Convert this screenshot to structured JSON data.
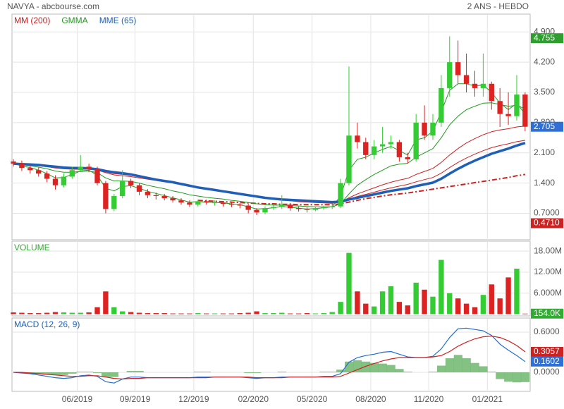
{
  "chart_data": [
    {
      "type": "candlestick",
      "title": "NAVYA - abcbourse.com",
      "subtitle": "2 ANS - HEBDO",
      "up_color": "#33cc33",
      "down_color": "#dd2222",
      "open": [
        1.9,
        1.85,
        1.75,
        1.7,
        1.62,
        1.5,
        1.35,
        1.55,
        1.7,
        1.78,
        1.72,
        1.4,
        0.8,
        1.1,
        1.45,
        1.35,
        1.2,
        1.12,
        1.1,
        1.05,
        1.0,
        0.95,
        0.9,
        0.98,
        0.95,
        0.95,
        0.92,
        0.9,
        0.88,
        0.78,
        0.72,
        0.82,
        0.85,
        0.9,
        0.82,
        0.8,
        0.78,
        0.82,
        0.84,
        0.86,
        1.4,
        2.5,
        2.35,
        2.05,
        2.25,
        2.3,
        2.35,
        2.0,
        1.95,
        2.8,
        2.5,
        2.8,
        3.6,
        4.2,
        3.9,
        3.7,
        3.6,
        3.7,
        3.3,
        3.0,
        2.95,
        3.45
      ],
      "high": [
        1.95,
        1.92,
        1.82,
        1.76,
        1.68,
        1.58,
        1.62,
        1.78,
        2.05,
        1.85,
        1.78,
        1.45,
        1.15,
        1.7,
        1.5,
        1.4,
        1.26,
        1.18,
        1.15,
        1.1,
        1.05,
        1.0,
        1.02,
        1.02,
        1.0,
        0.98,
        0.96,
        0.94,
        0.92,
        0.82,
        0.86,
        0.9,
        1.12,
        0.94,
        0.86,
        0.84,
        0.86,
        0.88,
        0.92,
        1.5,
        4.1,
        2.8,
        2.45,
        2.4,
        2.7,
        2.5,
        2.4,
        2.1,
        3.0,
        3.2,
        3.0,
        3.9,
        4.8,
        4.7,
        4.4,
        4.0,
        4.4,
        3.75,
        3.6,
        3.5,
        3.9,
        3.5
      ],
      "low": [
        1.78,
        1.68,
        1.62,
        1.55,
        1.42,
        1.25,
        1.3,
        1.5,
        1.65,
        1.65,
        1.35,
        0.7,
        0.75,
        1.05,
        1.28,
        1.12,
        1.05,
        1.02,
        1.0,
        0.95,
        0.9,
        0.85,
        0.86,
        0.9,
        0.88,
        0.86,
        0.84,
        0.82,
        0.7,
        0.66,
        0.68,
        0.78,
        0.8,
        0.76,
        0.74,
        0.72,
        0.75,
        0.78,
        0.8,
        0.82,
        1.35,
        2.2,
        1.95,
        1.95,
        2.1,
        2.2,
        1.9,
        1.85,
        1.9,
        2.4,
        2.4,
        2.7,
        3.4,
        3.7,
        3.5,
        3.4,
        3.4,
        3.1,
        2.7,
        2.75,
        2.85,
        2.6
      ],
      "close": [
        1.85,
        1.75,
        1.7,
        1.62,
        1.5,
        1.35,
        1.55,
        1.7,
        1.78,
        1.72,
        1.4,
        0.8,
        1.1,
        1.45,
        1.35,
        1.2,
        1.12,
        1.1,
        1.05,
        1.0,
        0.95,
        0.9,
        0.98,
        0.95,
        0.95,
        0.92,
        0.9,
        0.88,
        0.78,
        0.72,
        0.82,
        0.85,
        0.9,
        0.82,
        0.8,
        0.78,
        0.82,
        0.84,
        0.86,
        1.4,
        2.5,
        2.35,
        2.05,
        2.25,
        2.3,
        2.35,
        2.0,
        1.95,
        2.8,
        2.5,
        2.8,
        3.6,
        4.2,
        3.9,
        3.7,
        3.6,
        3.7,
        3.3,
        3.0,
        2.95,
        3.45,
        2.705
      ],
      "series": [
        {
          "name": "MM (200)",
          "color": "#cc2222",
          "dashed": true,
          "values": [
            null,
            null,
            null,
            null,
            null,
            null,
            null,
            null,
            null,
            null,
            null,
            null,
            null,
            null,
            null,
            null,
            null,
            null,
            null,
            null,
            null,
            null,
            1.0,
            0.99,
            0.98,
            0.97,
            0.96,
            0.95,
            0.94,
            0.93,
            0.92,
            0.92,
            0.91,
            0.91,
            0.9,
            0.9,
            0.9,
            0.9,
            0.9,
            0.92,
            0.96,
            1.0,
            1.04,
            1.07,
            1.1,
            1.13,
            1.15,
            1.17,
            1.2,
            1.23,
            1.26,
            1.29,
            1.32,
            1.35,
            1.38,
            1.41,
            1.44,
            1.47,
            1.5,
            1.53,
            1.57,
            1.6
          ]
        },
        {
          "name": "GMMA",
          "color": "#229922",
          "long_color": "#cc2222",
          "short": [
            [
              1.85,
              1.8,
              1.76,
              1.7,
              1.62,
              1.52,
              1.53,
              1.6,
              1.68,
              1.7,
              1.58,
              1.28,
              1.22,
              1.32,
              1.34,
              1.28,
              1.21,
              1.16,
              1.11,
              1.06,
              1.01,
              0.96,
              0.97,
              0.96,
              0.95,
              0.94,
              0.92,
              0.9,
              0.85,
              0.8,
              0.81,
              0.83,
              0.86,
              0.84,
              0.82,
              0.8,
              0.81,
              0.83,
              0.85,
              1.1,
              1.7,
              1.95,
              2.0,
              2.1,
              2.18,
              2.25,
              2.15,
              2.05,
              2.4,
              2.45,
              2.6,
              3.05,
              3.55,
              3.7,
              3.7,
              3.65,
              3.67,
              3.5,
              3.25,
              3.1,
              3.25,
              3.0
            ],
            [
              1.85,
              1.83,
              1.8,
              1.77,
              1.73,
              1.68,
              1.65,
              1.65,
              1.67,
              1.68,
              1.64,
              1.52,
              1.45,
              1.45,
              1.44,
              1.4,
              1.35,
              1.31,
              1.27,
              1.22,
              1.18,
              1.13,
              1.1,
              1.07,
              1.05,
              1.03,
              1.0,
              0.98,
              0.95,
              0.92,
              0.9,
              0.89,
              0.89,
              0.88,
              0.87,
              0.86,
              0.85,
              0.85,
              0.85,
              0.92,
              1.15,
              1.35,
              1.48,
              1.6,
              1.7,
              1.8,
              1.84,
              1.86,
              2.0,
              2.1,
              2.2,
              2.45,
              2.75,
              2.95,
              3.1,
              3.18,
              3.25,
              3.26,
              3.22,
              3.18,
              3.2,
              3.12
            ]
          ],
          "long": [
            [
              1.85,
              1.84,
              1.82,
              1.8,
              1.78,
              1.75,
              1.73,
              1.72,
              1.72,
              1.72,
              1.7,
              1.64,
              1.59,
              1.57,
              1.55,
              1.52,
              1.49,
              1.46,
              1.43,
              1.4,
              1.36,
              1.32,
              1.29,
              1.26,
              1.23,
              1.2,
              1.17,
              1.14,
              1.11,
              1.08,
              1.05,
              1.03,
              1.01,
              0.99,
              0.97,
              0.96,
              0.95,
              0.94,
              0.93,
              0.96,
              1.06,
              1.15,
              1.22,
              1.29,
              1.36,
              1.42,
              1.47,
              1.51,
              1.6,
              1.67,
              1.74,
              1.88,
              2.05,
              2.2,
              2.33,
              2.43,
              2.52,
              2.59,
              2.63,
              2.66,
              2.7,
              2.72
            ],
            [
              1.85,
              1.84,
              1.83,
              1.81,
              1.79,
              1.77,
              1.75,
              1.74,
              1.74,
              1.73,
              1.71,
              1.66,
              1.62,
              1.6,
              1.58,
              1.54,
              1.51,
              1.47,
              1.44,
              1.41,
              1.37,
              1.33,
              1.3,
              1.27,
              1.24,
              1.21,
              1.18,
              1.15,
              1.12,
              1.09,
              1.06,
              1.04,
              1.02,
              1.0,
              0.98,
              0.97,
              0.96,
              0.95,
              0.94,
              0.96,
              1.03,
              1.09,
              1.14,
              1.19,
              1.24,
              1.29,
              1.33,
              1.37,
              1.43,
              1.48,
              1.53,
              1.63,
              1.76,
              1.88,
              1.98,
              2.07,
              2.15,
              2.22,
              2.27,
              2.31,
              2.36,
              2.39
            ]
          ]
        },
        {
          "name": "MME (65)",
          "color": "#1f5fb8",
          "width": 3.5,
          "values": [
            1.85,
            1.84,
            1.83,
            1.82,
            1.8,
            1.78,
            1.76,
            1.75,
            1.75,
            1.74,
            1.72,
            1.68,
            1.65,
            1.63,
            1.6,
            1.56,
            1.52,
            1.48,
            1.45,
            1.42,
            1.38,
            1.34,
            1.3,
            1.27,
            1.24,
            1.21,
            1.18,
            1.15,
            1.12,
            1.09,
            1.06,
            1.04,
            1.02,
            1.01,
            1.0,
            0.99,
            0.98,
            0.97,
            0.96,
            0.97,
            1.02,
            1.06,
            1.1,
            1.14,
            1.18,
            1.22,
            1.25,
            1.28,
            1.33,
            1.37,
            1.41,
            1.5,
            1.62,
            1.73,
            1.83,
            1.92,
            2.0,
            2.08,
            2.14,
            2.2,
            2.27,
            2.33
          ]
        }
      ],
      "xlim": [
        -0.17,
        61.6
      ],
      "ylim": [
        0.088,
        5.313
      ],
      "yticks": [
        {
          "value": 0.7,
          "label": "0.7000"
        },
        {
          "value": 1.4,
          "label": "1.400"
        },
        {
          "value": 2.1,
          "label": "2.100"
        },
        {
          "value": 2.8,
          "label": "2.800"
        },
        {
          "value": 3.5,
          "label": "3.500"
        },
        {
          "value": 4.2,
          "label": "4.200"
        },
        {
          "value": 4.9,
          "label": "4.900"
        }
      ],
      "markers": [
        {
          "value": 4.755,
          "label": "4.755",
          "color": "#2e9e2e"
        },
        {
          "value": 2.705,
          "label": "2.705",
          "color": "#2f6fd6"
        },
        {
          "value": 0.471,
          "label": "0.4710",
          "color": "#cc2222"
        }
      ],
      "grid": true
    },
    {
      "type": "bar",
      "title": "VOLUME",
      "title_color": "#33aa33",
      "values": [
        0.5,
        0.4,
        0.3,
        0.3,
        0.4,
        0.6,
        0.5,
        0.4,
        0.4,
        0.5,
        2.0,
        6.5,
        2.0,
        0.8,
        0.6,
        0.4,
        0.3,
        0.3,
        0.3,
        0.2,
        0.2,
        0.2,
        0.3,
        0.2,
        0.2,
        0.2,
        0.2,
        0.3,
        0.4,
        0.8,
        0.3,
        0.3,
        0.4,
        0.2,
        0.2,
        0.3,
        0.2,
        0.3,
        0.6,
        3.5,
        17.5,
        6.5,
        3.0,
        2.2,
        6.5,
        8.0,
        3.5,
        2.5,
        9.0,
        7.0,
        5.0,
        15.5,
        6.0,
        4.5,
        3.0,
        2.0,
        5.5,
        8.5,
        4.5,
        10.5,
        13.0,
        0.154
      ],
      "xlim": [
        -0.17,
        61.6
      ],
      "ylim": [
        -0.5,
        20.85
      ],
      "yticks": [
        {
          "value": 6,
          "label": "6.000M"
        },
        {
          "value": 12,
          "label": "12.00M"
        },
        {
          "value": 18,
          "label": "18.00M"
        }
      ],
      "markers": [
        {
          "value": 0.154,
          "label": "154.0K",
          "color": "#33aa33"
        }
      ],
      "grid": true
    },
    {
      "type": "line",
      "title": "MACD (12, 26, 9)",
      "title_color": "#1f5fb8",
      "series": [
        {
          "color": "#1f6fd0",
          "values": [
            0.0,
            -0.01,
            -0.02,
            -0.04,
            -0.06,
            -0.08,
            -0.09,
            -0.08,
            -0.05,
            -0.04,
            -0.06,
            -0.14,
            -0.16,
            -0.1,
            -0.07,
            -0.07,
            -0.08,
            -0.08,
            -0.08,
            -0.08,
            -0.08,
            -0.08,
            -0.07,
            -0.07,
            -0.07,
            -0.07,
            -0.07,
            -0.07,
            -0.08,
            -0.09,
            -0.08,
            -0.08,
            -0.07,
            -0.07,
            -0.07,
            -0.07,
            -0.07,
            -0.06,
            -0.06,
            -0.02,
            0.15,
            0.22,
            0.25,
            0.27,
            0.3,
            0.31,
            0.27,
            0.23,
            0.22,
            0.22,
            0.24,
            0.35,
            0.52,
            0.65,
            0.66,
            0.64,
            0.62,
            0.55,
            0.42,
            0.33,
            0.25,
            0.1602
          ]
        },
        {
          "color": "#cc2222",
          "values": [
            0.0,
            0.0,
            -0.01,
            -0.02,
            -0.03,
            -0.04,
            -0.05,
            -0.06,
            -0.06,
            -0.05,
            -0.05,
            -0.07,
            -0.09,
            -0.1,
            -0.09,
            -0.09,
            -0.08,
            -0.08,
            -0.08,
            -0.08,
            -0.08,
            -0.08,
            -0.08,
            -0.08,
            -0.07,
            -0.07,
            -0.07,
            -0.07,
            -0.07,
            -0.08,
            -0.08,
            -0.08,
            -0.08,
            -0.07,
            -0.07,
            -0.07,
            -0.07,
            -0.07,
            -0.07,
            -0.06,
            -0.01,
            0.04,
            0.09,
            0.13,
            0.17,
            0.2,
            0.22,
            0.22,
            0.22,
            0.22,
            0.23,
            0.25,
            0.31,
            0.39,
            0.45,
            0.5,
            0.53,
            0.54,
            0.52,
            0.47,
            0.4,
            0.3057
          ]
        }
      ],
      "histogram": {
        "color": "#5aae5a",
        "values": [
          0,
          -0.01,
          -0.01,
          -0.02,
          -0.03,
          -0.04,
          -0.04,
          -0.02,
          0.01,
          0.01,
          -0.01,
          -0.07,
          -0.07,
          0,
          0.02,
          0.02,
          0,
          0,
          0,
          0,
          0,
          0,
          0.01,
          0.01,
          0,
          0,
          0,
          0,
          -0.01,
          -0.01,
          0,
          0,
          0.01,
          0,
          0,
          0,
          0,
          0.01,
          0.01,
          0.04,
          0.16,
          0.18,
          0.16,
          0.14,
          0.13,
          0.11,
          0.05,
          0.01,
          0,
          0,
          0.01,
          0.1,
          0.21,
          0.26,
          0.21,
          0.14,
          0.09,
          0.01,
          -0.1,
          -0.14,
          -0.15,
          -0.1455
        ]
      },
      "xlim": [
        -0.17,
        61.6
      ],
      "ylim": [
        -0.284,
        0.81
      ],
      "yticks": [
        {
          "value": 0,
          "label": "0.0000"
        },
        {
          "value": 0.6,
          "label": "0.6000"
        }
      ],
      "xticks": [
        {
          "value": 7.6,
          "label": "06/2019"
        },
        {
          "value": 14.5,
          "label": "09/2019"
        },
        {
          "value": 21.5,
          "label": "12/2019"
        },
        {
          "value": 28.6,
          "label": "02/2020"
        },
        {
          "value": 35.6,
          "label": "05/2020"
        },
        {
          "value": 42.6,
          "label": "08/2020"
        },
        {
          "value": 49.5,
          "label": "11/2020"
        },
        {
          "value": 56.5,
          "label": "01/2021"
        }
      ],
      "markers": [
        {
          "value": 0.3057,
          "label": "0.3057",
          "color": "#cc2222"
        },
        {
          "value": 0.1602,
          "label": "0.1602",
          "color": "#2f6fd6"
        }
      ],
      "grid": true
    }
  ]
}
